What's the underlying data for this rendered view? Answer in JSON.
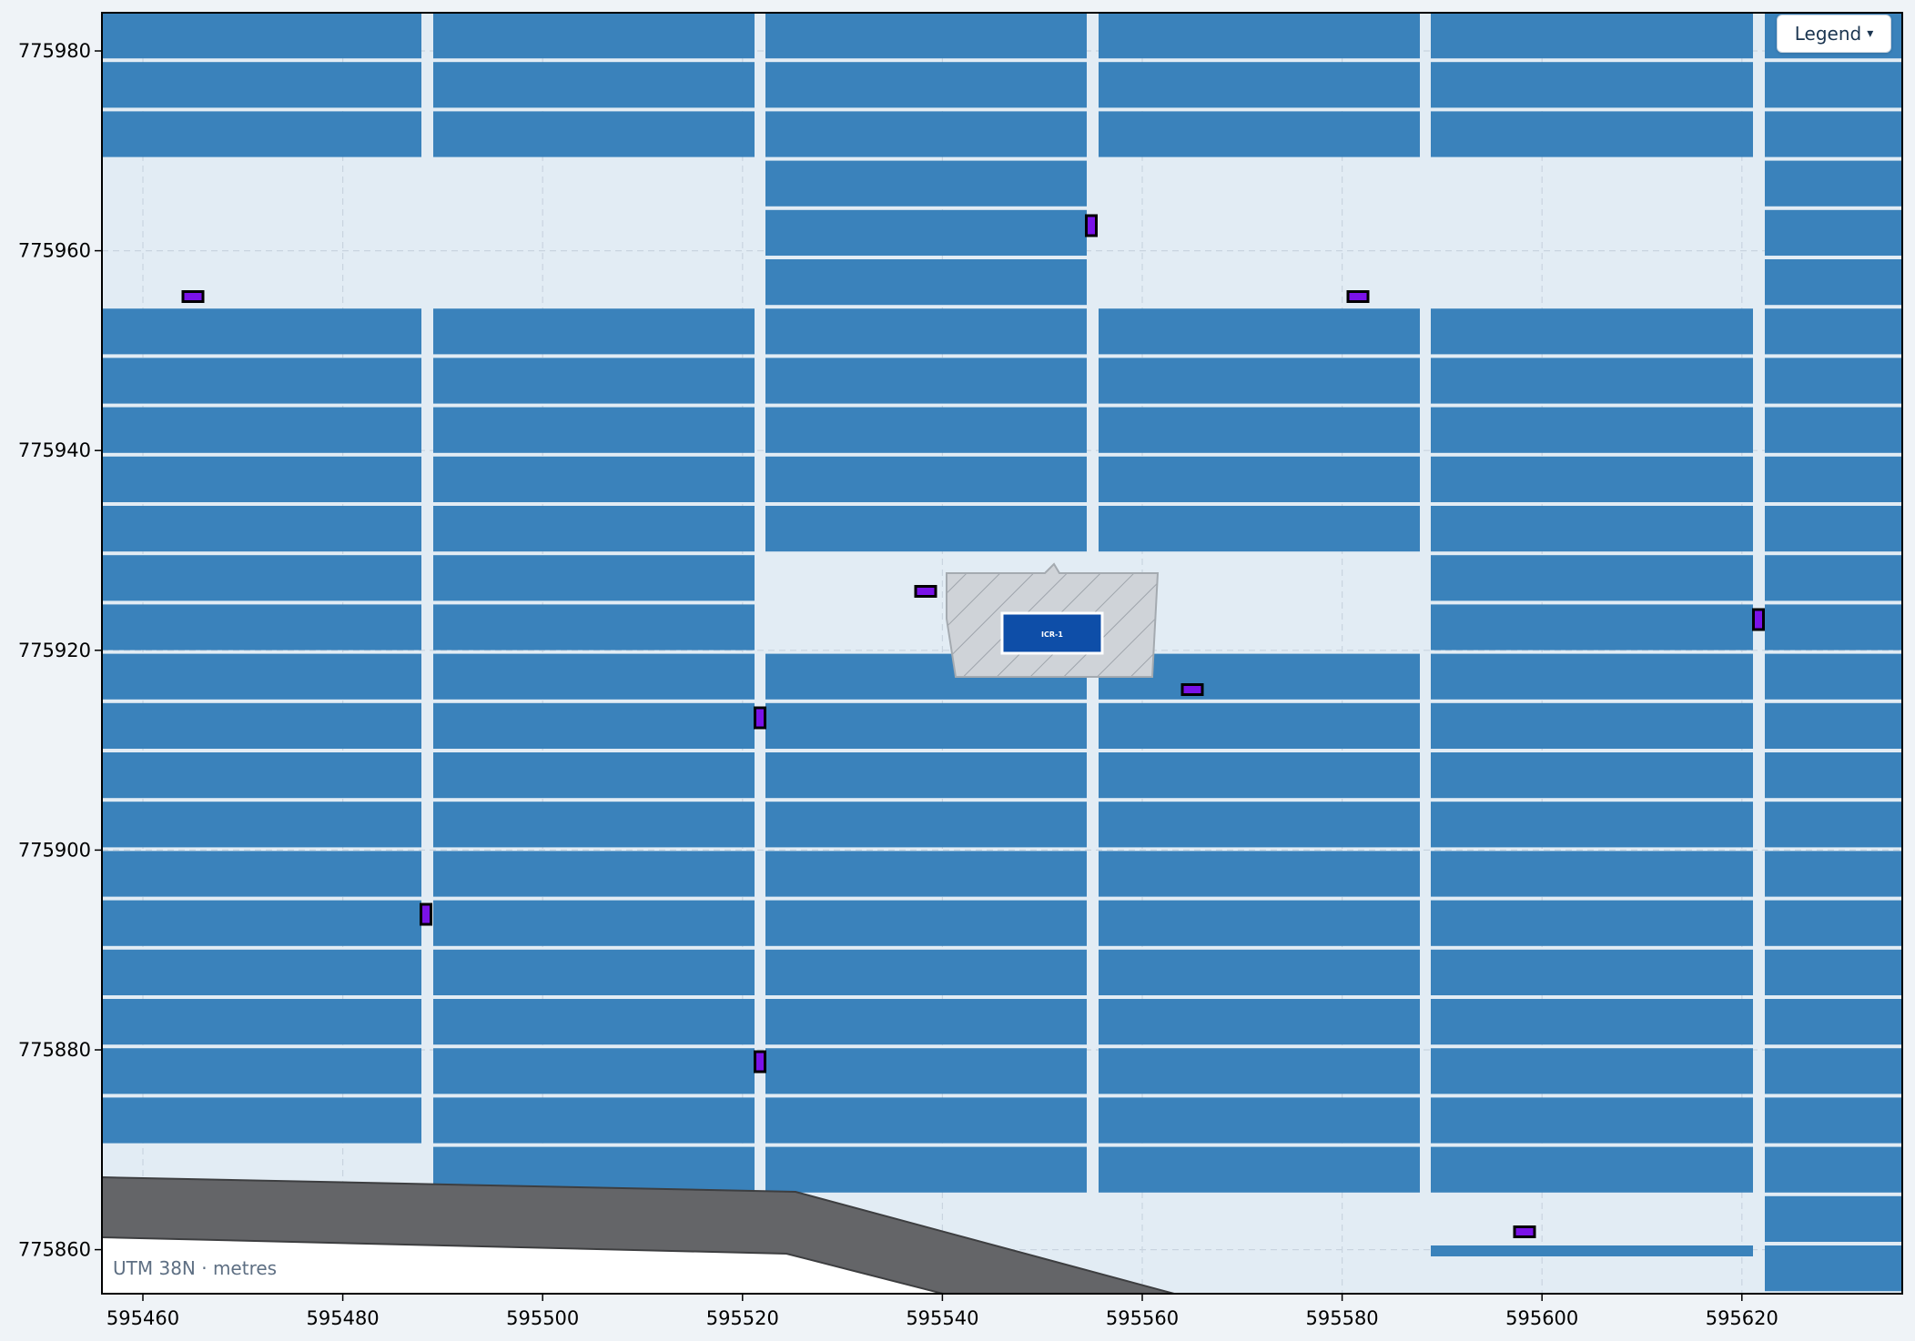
{
  "legend_button": {
    "label": "Legend",
    "caret": "▾"
  },
  "crs_label": "UTM 38N · metres",
  "inverter_label": "ICR-1",
  "x_ticks": [
    "595460",
    "595480",
    "595500",
    "595520",
    "595540",
    "595560",
    "595580",
    "595600",
    "595620"
  ],
  "y_ticks": [
    "775980",
    "775960",
    "775940",
    "775920",
    "775900",
    "775880",
    "775860"
  ],
  "colors": {
    "panel": "#3a82bb",
    "ground": "#e2ecf4",
    "road": "#646568",
    "inverter": "#0e4ea8",
    "combiner_box": "#7a12e8",
    "pad_hatch": "#cfd3d8"
  }
}
